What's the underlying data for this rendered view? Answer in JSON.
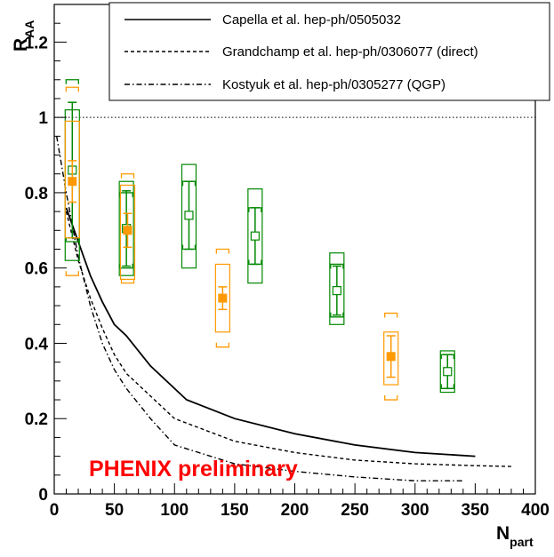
{
  "chart_data": {
    "type": "scatter",
    "xlabel": "N",
    "xlabel_sub": "part",
    "ylabel": "R",
    "ylabel_sub": "AA",
    "xlim": [
      0,
      400
    ],
    "ylim": [
      0,
      1.3
    ],
    "x_ticks": [
      0,
      50,
      100,
      150,
      200,
      250,
      300,
      350,
      400
    ],
    "x_tick_labels": [
      "0",
      "50",
      "100",
      "150",
      "200",
      "250",
      "300",
      "350",
      "400"
    ],
    "y_ticks": [
      0,
      0.2,
      0.4,
      0.6,
      0.8,
      1,
      1.2
    ],
    "y_tick_labels": [
      "0",
      "0.2",
      "0.4",
      "0.6",
      "0.8",
      "1",
      "1.2"
    ],
    "reference_line": {
      "y": 1.0,
      "style": "dotted"
    },
    "annotation": {
      "text": "PHENIX preliminary",
      "color": "#ff0000"
    },
    "legend": {
      "placement": "top-right",
      "entries": [
        "Capella et al. hep-ph/0505032",
        "Grandchamp et al. hep-ph/0306077 (direct)",
        "Kostyuk et al. hep-ph/0305277 (QGP)"
      ]
    },
    "curves": [
      {
        "legend_index": 0,
        "style": "solid",
        "x": [
          10,
          20,
          30,
          40,
          50,
          60,
          80,
          110,
          150,
          200,
          250,
          300,
          350
        ],
        "y": [
          0.76,
          0.67,
          0.58,
          0.51,
          0.45,
          0.42,
          0.34,
          0.25,
          0.2,
          0.16,
          0.13,
          0.11,
          0.1
        ]
      },
      {
        "legend_index": 1,
        "style": "dashed",
        "x": [
          10,
          20,
          30,
          40,
          50,
          60,
          80,
          100,
          150,
          200,
          250,
          300,
          350,
          380
        ],
        "y": [
          0.75,
          0.62,
          0.52,
          0.44,
          0.37,
          0.32,
          0.26,
          0.2,
          0.14,
          0.11,
          0.09,
          0.08,
          0.075,
          0.073
        ]
      },
      {
        "legend_index": 2,
        "style": "dashdot",
        "x": [
          2,
          10,
          20,
          30,
          40,
          50,
          60,
          80,
          100,
          150,
          200,
          250,
          300,
          340
        ],
        "y": [
          0.95,
          0.8,
          0.63,
          0.5,
          0.4,
          0.33,
          0.28,
          0.2,
          0.13,
          0.08,
          0.06,
          0.045,
          0.035,
          0.035
        ]
      }
    ],
    "series": [
      {
        "marker": "open-square",
        "color": "#008800",
        "points": [
          {
            "x": 15,
            "y": 0.86,
            "stat_err": 0.18,
            "box_lo": 0.62,
            "box_hi": 1.02,
            "bracket_lo": 0.67,
            "bracket_hi": 1.1
          },
          {
            "x": 60,
            "y": 0.705,
            "stat_err": 0.1,
            "box_lo": 0.58,
            "box_hi": 0.83,
            "bracket_lo": 0.6,
            "bracket_hi": 0.8
          },
          {
            "x": 112,
            "y": 0.74,
            "stat_err": 0.09,
            "box_lo": 0.6,
            "box_hi": 0.875,
            "bracket_lo": 0.65,
            "bracket_hi": 0.83
          },
          {
            "x": 167,
            "y": 0.685,
            "stat_err": 0.075,
            "box_lo": 0.56,
            "box_hi": 0.81,
            "bracket_lo": 0.61,
            "bracket_hi": 0.76
          },
          {
            "x": 235,
            "y": 0.54,
            "stat_err": 0.065,
            "box_lo": 0.45,
            "box_hi": 0.64,
            "bracket_lo": 0.47,
            "bracket_hi": 0.61
          },
          {
            "x": 327,
            "y": 0.325,
            "stat_err": 0.045,
            "box_lo": 0.27,
            "box_hi": 0.38,
            "bracket_lo": 0.28,
            "bracket_hi": 0.37
          }
        ]
      },
      {
        "marker": "filled-square",
        "color": "#ff9900",
        "points": [
          {
            "x": 15,
            "y": 0.83,
            "stat_err": 0.055,
            "box_lo": 0.68,
            "box_hi": 0.99,
            "bracket_lo": 0.58,
            "bracket_hi": 1.08
          },
          {
            "x": 61,
            "y": 0.7,
            "stat_err": 0.045,
            "box_lo": 0.57,
            "box_hi": 0.82,
            "bracket_lo": 0.56,
            "bracket_hi": 0.85
          },
          {
            "x": 140,
            "y": 0.52,
            "stat_err": 0.03,
            "box_lo": 0.43,
            "box_hi": 0.61,
            "bracket_lo": 0.39,
            "bracket_hi": 0.65
          },
          {
            "x": 280,
            "y": 0.365,
            "stat_err": 0.055,
            "box_lo": 0.29,
            "box_hi": 0.43,
            "bracket_lo": 0.25,
            "bracket_hi": 0.48
          }
        ]
      }
    ]
  }
}
